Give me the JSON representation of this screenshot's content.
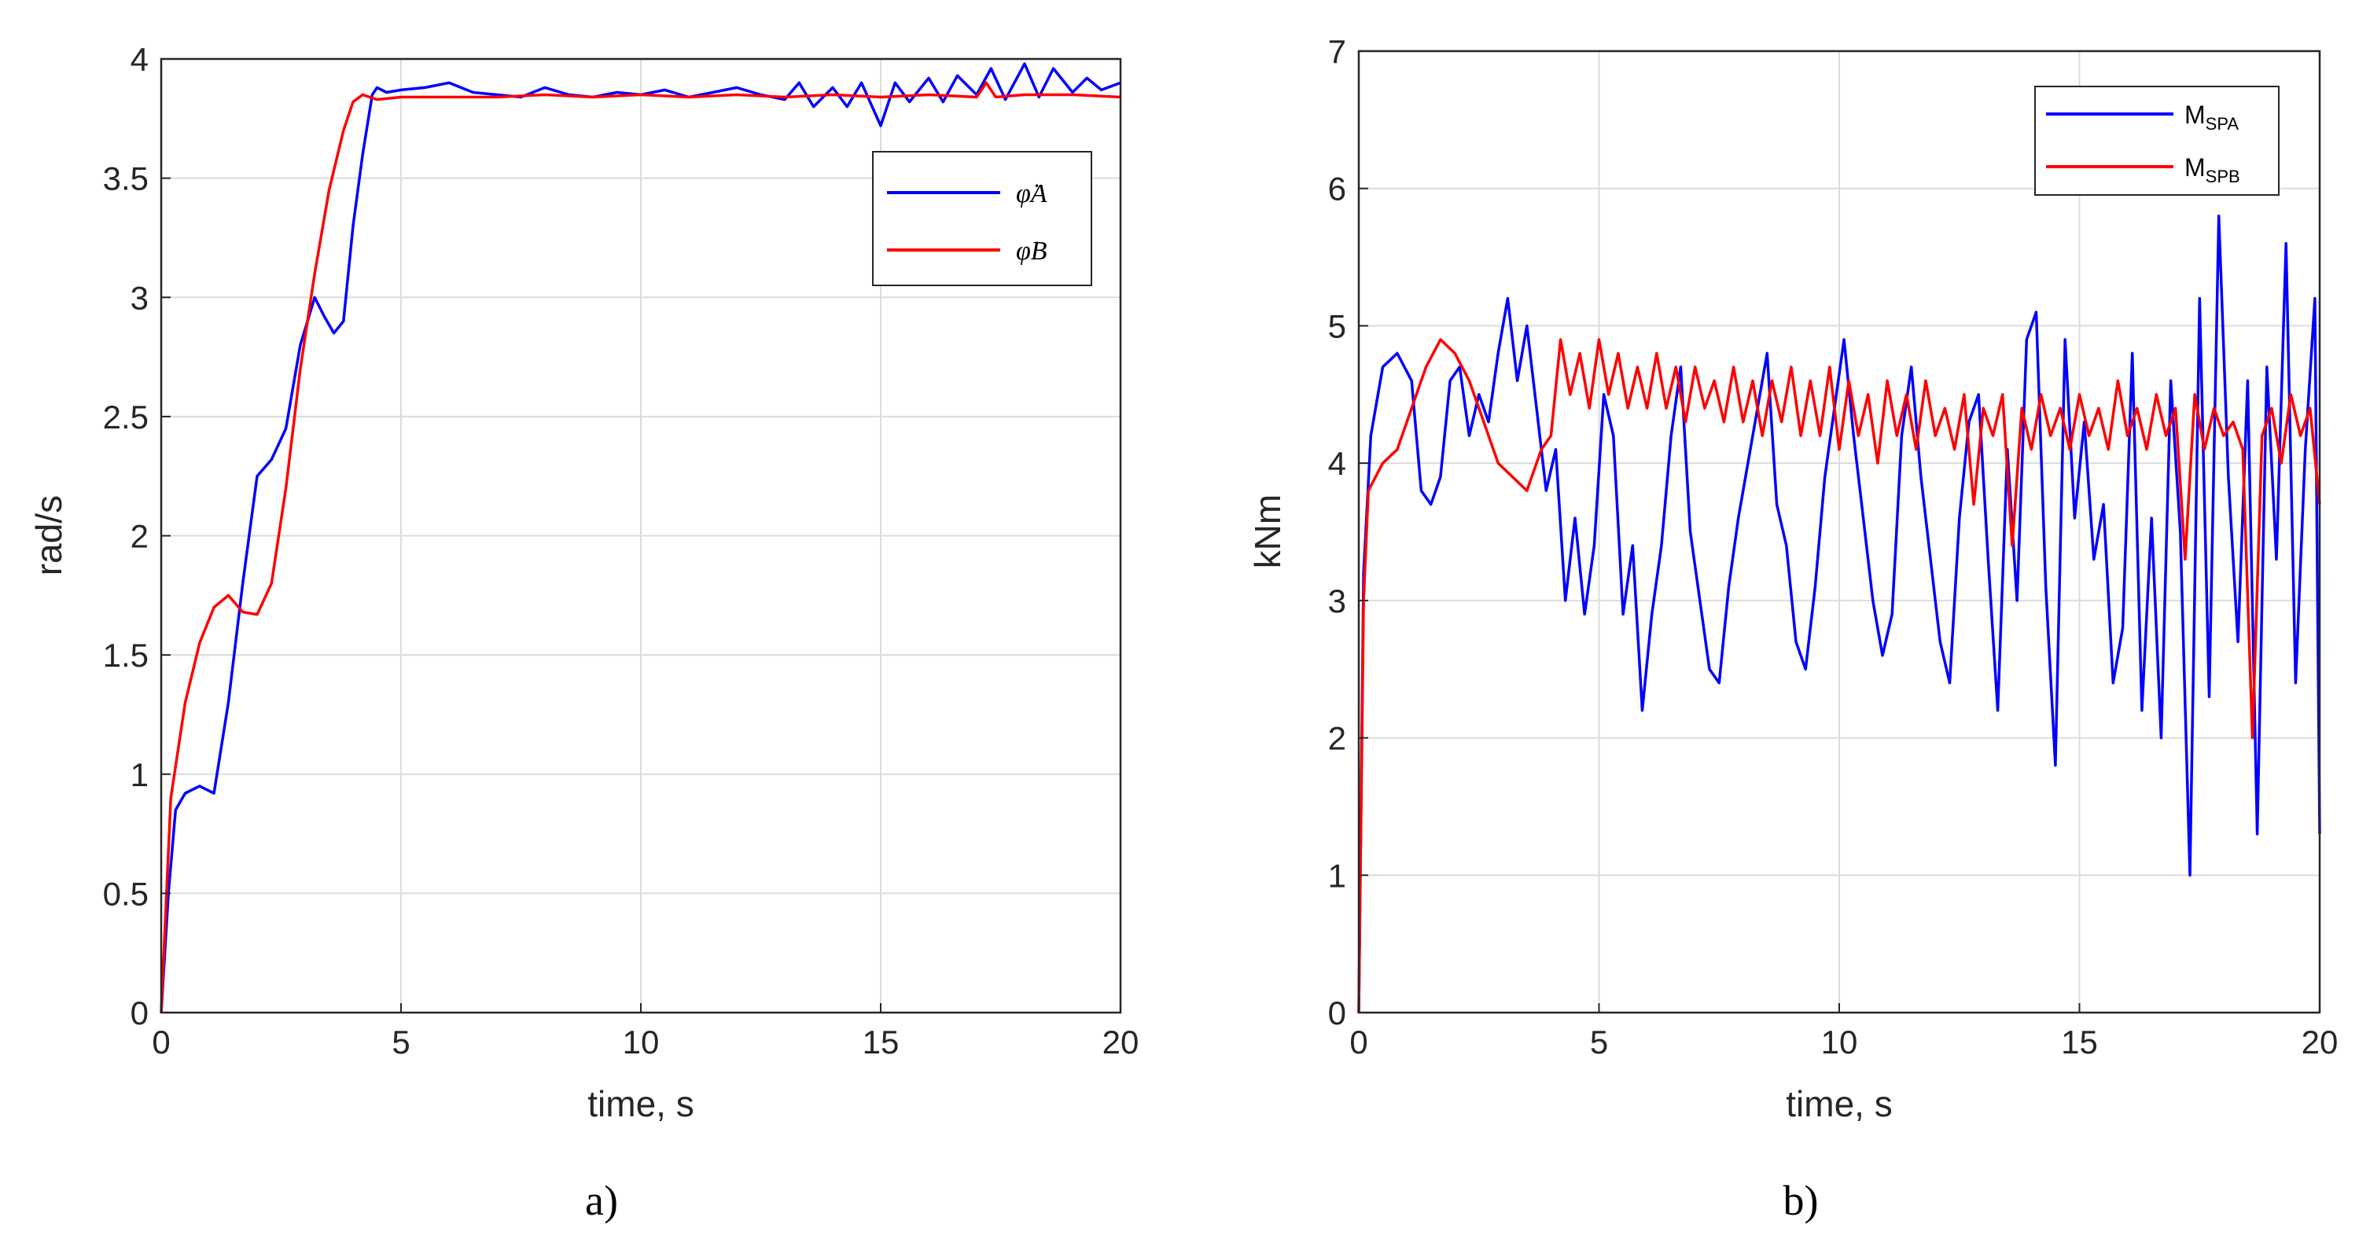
{
  "chart_data": [
    {
      "type": "line",
      "panel_label": "a)",
      "xlabel": "time, s",
      "ylabel": "rad/s",
      "xlim": [
        0,
        20
      ],
      "ylim": [
        0,
        4
      ],
      "xticks": [
        "0",
        "5",
        "10",
        "15",
        "20"
      ],
      "yticks": [
        "0",
        "0.5",
        "1",
        "1.5",
        "2",
        "2.5",
        "3",
        "3.5",
        "4"
      ],
      "grid": true,
      "legend_position": "top-right",
      "series": [
        {
          "name": "φ̇A",
          "color": "#0000ff",
          "x": [
            0,
            0.15,
            0.3,
            0.5,
            0.8,
            1.1,
            1.4,
            1.7,
            2.0,
            2.3,
            2.6,
            2.9,
            3.2,
            3.4,
            3.6,
            3.8,
            3.9,
            4.0,
            4.2,
            4.4,
            4.5,
            4.7,
            5,
            5.5,
            6,
            6.5,
            7,
            7.5,
            8,
            8.5,
            9,
            9.5,
            10,
            10.5,
            11,
            11.5,
            12,
            12.5,
            13,
            13.3,
            13.6,
            14,
            14.3,
            14.6,
            15,
            15.3,
            15.6,
            16,
            16.3,
            16.6,
            17,
            17.3,
            17.6,
            18,
            18.3,
            18.6,
            19,
            19.3,
            19.6,
            20
          ],
          "y": [
            0,
            0.5,
            0.85,
            0.92,
            0.95,
            0.92,
            1.3,
            1.8,
            2.25,
            2.32,
            2.45,
            2.8,
            3.0,
            2.92,
            2.85,
            2.9,
            3.1,
            3.3,
            3.6,
            3.85,
            3.88,
            3.86,
            3.87,
            3.88,
            3.9,
            3.86,
            3.85,
            3.84,
            3.88,
            3.85,
            3.84,
            3.86,
            3.85,
            3.87,
            3.84,
            3.86,
            3.88,
            3.85,
            3.83,
            3.9,
            3.8,
            3.88,
            3.8,
            3.9,
            3.72,
            3.9,
            3.82,
            3.92,
            3.82,
            3.93,
            3.85,
            3.96,
            3.83,
            3.98,
            3.84,
            3.96,
            3.86,
            3.92,
            3.87,
            3.9
          ]
        },
        {
          "name": "φ̇B",
          "color": "#ff0000",
          "x": [
            0,
            0.2,
            0.5,
            0.8,
            1.1,
            1.4,
            1.7,
            2.0,
            2.3,
            2.6,
            2.9,
            3.2,
            3.5,
            3.8,
            4.0,
            4.2,
            4.5,
            5,
            6,
            7,
            8,
            9,
            10,
            11,
            12,
            13,
            14,
            15,
            16,
            17,
            17.2,
            17.4,
            18,
            19,
            20
          ],
          "y": [
            0,
            0.9,
            1.3,
            1.55,
            1.7,
            1.75,
            1.68,
            1.67,
            1.8,
            2.2,
            2.7,
            3.1,
            3.45,
            3.7,
            3.82,
            3.85,
            3.83,
            3.84,
            3.84,
            3.84,
            3.85,
            3.84,
            3.85,
            3.84,
            3.85,
            3.84,
            3.85,
            3.84,
            3.85,
            3.84,
            3.9,
            3.84,
            3.85,
            3.85,
            3.84
          ]
        }
      ]
    },
    {
      "type": "line",
      "panel_label": "b)",
      "xlabel": "time, s",
      "ylabel": "kNm",
      "xlim": [
        0,
        20
      ],
      "ylim": [
        0,
        7
      ],
      "xticks": [
        "0",
        "5",
        "10",
        "15",
        "20"
      ],
      "yticks": [
        "0",
        "1",
        "2",
        "3",
        "4",
        "5",
        "6",
        "7"
      ],
      "grid": true,
      "legend_position": "top-right",
      "series": [
        {
          "name": "MSPA",
          "label_base": "M",
          "label_sub": "SPA",
          "color": "#0000ff",
          "x": [
            0,
            0.1,
            0.25,
            0.5,
            0.8,
            1.1,
            1.3,
            1.5,
            1.7,
            1.9,
            2.1,
            2.3,
            2.5,
            2.7,
            2.9,
            3.1,
            3.3,
            3.5,
            3.7,
            3.9,
            4.1,
            4.3,
            4.5,
            4.7,
            4.9,
            5.1,
            5.3,
            5.5,
            5.7,
            5.9,
            6.1,
            6.3,
            6.5,
            6.7,
            6.9,
            7.1,
            7.3,
            7.5,
            7.7,
            7.9,
            8.1,
            8.3,
            8.5,
            8.7,
            8.9,
            9.1,
            9.3,
            9.5,
            9.7,
            9.9,
            10.1,
            10.3,
            10.5,
            10.7,
            10.9,
            11.1,
            11.3,
            11.5,
            11.7,
            11.9,
            12.1,
            12.3,
            12.5,
            12.7,
            12.9,
            13.1,
            13.3,
            13.5,
            13.7,
            13.9,
            14.1,
            14.3,
            14.5,
            14.7,
            14.9,
            15.1,
            15.3,
            15.5,
            15.7,
            15.9,
            16.1,
            16.3,
            16.5,
            16.7,
            16.9,
            17.1,
            17.3,
            17.5,
            17.7,
            17.9,
            18.1,
            18.3,
            18.5,
            18.7,
            18.9,
            19.1,
            19.3,
            19.5,
            19.7,
            19.9,
            20
          ],
          "y": [
            0,
            3.2,
            4.2,
            4.7,
            4.8,
            4.6,
            3.8,
            3.7,
            3.9,
            4.6,
            4.7,
            4.2,
            4.5,
            4.3,
            4.8,
            5.2,
            4.6,
            5.0,
            4.4,
            3.8,
            4.1,
            3.0,
            3.6,
            2.9,
            3.4,
            4.5,
            4.2,
            2.9,
            3.4,
            2.2,
            2.9,
            3.4,
            4.2,
            4.7,
            3.5,
            3.0,
            2.5,
            2.4,
            3.1,
            3.6,
            4.0,
            4.4,
            4.8,
            3.7,
            3.4,
            2.7,
            2.5,
            3.1,
            3.9,
            4.4,
            4.9,
            4.2,
            3.6,
            3.0,
            2.6,
            2.9,
            4.2,
            4.7,
            3.9,
            3.3,
            2.7,
            2.4,
            3.6,
            4.3,
            4.5,
            3.3,
            2.2,
            4.1,
            3.0,
            4.9,
            5.1,
            3.1,
            1.8,
            4.9,
            3.6,
            4.3,
            3.3,
            3.7,
            2.4,
            2.8,
            4.8,
            2.2,
            3.6,
            2.0,
            4.6,
            3.5,
            1.0,
            5.2,
            2.3,
            5.8,
            3.9,
            2.7,
            4.6,
            1.3,
            4.7,
            3.3,
            5.6,
            2.4,
            4.1,
            5.2,
            1.3
          ]
        },
        {
          "name": "MSPB",
          "label_base": "M",
          "label_sub": "SPB",
          "color": "#ff0000",
          "x": [
            0,
            0.1,
            0.2,
            0.35,
            0.5,
            0.8,
            1.1,
            1.4,
            1.7,
            2.0,
            2.3,
            2.6,
            2.9,
            3.2,
            3.5,
            3.8,
            4.0,
            4.2,
            4.4,
            4.6,
            4.8,
            5.0,
            5.2,
            5.4,
            5.6,
            5.8,
            6.0,
            6.2,
            6.4,
            6.6,
            6.8,
            7.0,
            7.2,
            7.4,
            7.6,
            7.8,
            8.0,
            8.2,
            8.4,
            8.6,
            8.8,
            9.0,
            9.2,
            9.4,
            9.6,
            9.8,
            10.0,
            10.2,
            10.4,
            10.6,
            10.8,
            11.0,
            11.2,
            11.4,
            11.6,
            11.8,
            12.0,
            12.2,
            12.4,
            12.6,
            12.8,
            13.0,
            13.2,
            13.4,
            13.6,
            13.8,
            14.0,
            14.2,
            14.4,
            14.6,
            14.8,
            15.0,
            15.2,
            15.4,
            15.6,
            15.8,
            16.0,
            16.2,
            16.4,
            16.6,
            16.8,
            17.0,
            17.2,
            17.4,
            17.6,
            17.8,
            18.0,
            18.2,
            18.4,
            18.6,
            18.8,
            19.0,
            19.2,
            19.4,
            19.6,
            19.8,
            20
          ],
          "y": [
            0,
            3.0,
            3.8,
            3.9,
            4.0,
            4.1,
            4.4,
            4.7,
            4.9,
            4.8,
            4.6,
            4.3,
            4.0,
            3.9,
            3.8,
            4.1,
            4.2,
            4.9,
            4.5,
            4.8,
            4.4,
            4.9,
            4.5,
            4.8,
            4.4,
            4.7,
            4.4,
            4.8,
            4.4,
            4.7,
            4.3,
            4.7,
            4.4,
            4.6,
            4.3,
            4.7,
            4.3,
            4.6,
            4.2,
            4.6,
            4.3,
            4.7,
            4.2,
            4.6,
            4.2,
            4.7,
            4.1,
            4.6,
            4.2,
            4.5,
            4.0,
            4.6,
            4.2,
            4.5,
            4.1,
            4.6,
            4.2,
            4.4,
            4.1,
            4.5,
            3.7,
            4.4,
            4.2,
            4.5,
            3.4,
            4.4,
            4.1,
            4.5,
            4.2,
            4.4,
            4.1,
            4.5,
            4.2,
            4.4,
            4.1,
            4.6,
            4.2,
            4.4,
            4.1,
            4.5,
            4.2,
            4.4,
            3.3,
            4.5,
            4.1,
            4.4,
            4.2,
            4.3,
            4.1,
            2.0,
            4.2,
            4.4,
            4.0,
            4.5,
            4.2,
            4.4,
            3.7
          ]
        }
      ]
    }
  ]
}
